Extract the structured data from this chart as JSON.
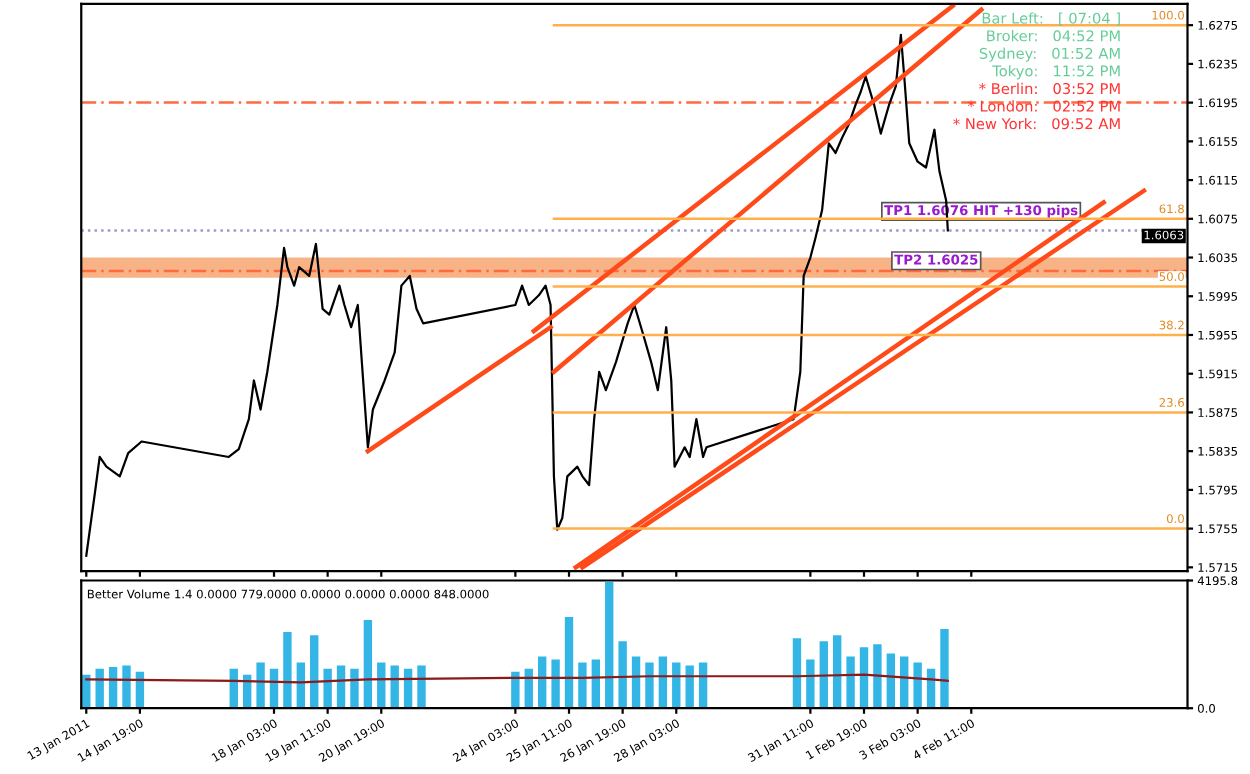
{
  "chart_data": [
    {
      "type": "line",
      "xlim": [
        "2011-01-13T08:00",
        "2011-02-09T20:00"
      ],
      "ylim": [
        1.5711,
        1.6297
      ],
      "tick_labels": "y",
      "xticks": [
        {
          "value": "2011-01-13T11:00",
          "label": null
        },
        {
          "value": "2011-01-14T19:00",
          "label": null
        },
        {
          "value": "2011-01-18T03:00",
          "label": null
        },
        {
          "value": "2011-01-19T11:00",
          "label": null
        },
        {
          "value": "2011-01-20T19:00",
          "label": null
        },
        {
          "value": "2011-01-24T03:00",
          "label": null
        },
        {
          "value": "2011-01-25T11:00",
          "label": null
        },
        {
          "value": "2011-01-26T19:00",
          "label": null
        },
        {
          "value": "2011-01-28T03:00",
          "label": null
        },
        {
          "value": "2011-01-31T11:00",
          "label": null
        },
        {
          "value": "2011-02-01T19:00",
          "label": null
        },
        {
          "value": "2011-02-03T03:00",
          "label": null
        },
        {
          "value": "2011-02-04T11:00",
          "label": null
        }
      ],
      "yticks": [
        1.5715,
        1.5755,
        1.5795,
        1.5835,
        1.5875,
        1.5915,
        1.5955,
        1.5995,
        1.6035,
        1.6075,
        1.6115,
        1.6155,
        1.6195,
        1.6235,
        1.6275
      ],
      "grid": false,
      "legend": false,
      "series": [
        {
          "color": "#000000",
          "x": [
            "2011-01-13T11:00",
            "2011-01-13T16:00",
            "2011-01-13T19:00",
            "2011-01-13T23:00",
            "2011-01-14T07:00",
            "2011-01-14T12:00",
            "2011-01-14T20:00",
            "2011-01-17T00:00",
            "2011-01-17T06:00",
            "2011-01-17T12:00",
            "2011-01-17T15:00",
            "2011-01-17T19:00",
            "2011-01-17T23:00",
            "2011-01-18T05:00",
            "2011-01-18T09:00",
            "2011-01-18T11:00",
            "2011-01-18T15:00",
            "2011-01-18T18:00",
            "2011-01-19T00:00",
            "2011-01-19T04:00",
            "2011-01-19T08:00",
            "2011-01-19T12:00",
            "2011-01-19T18:00",
            "2011-01-19T21:00",
            "2011-01-20T01:00",
            "2011-01-20T05:00",
            "2011-01-20T11:00",
            "2011-01-20T14:00",
            "2011-01-20T21:00",
            "2011-01-21T03:00",
            "2011-01-21T07:00",
            "2011-01-21T12:00",
            "2011-01-21T16:00",
            "2011-01-21T20:00",
            "2011-01-24T03:00",
            "2011-01-24T07:00",
            "2011-01-24T11:00",
            "2011-01-24T17:00",
            "2011-01-24T21:00",
            "2011-01-25T00:00",
            "2011-01-25T02:00",
            "2011-01-25T04:00",
            "2011-01-25T07:00",
            "2011-01-25T10:00",
            "2011-01-25T16:00",
            "2011-01-25T19:00",
            "2011-01-25T23:00",
            "2011-01-26T02:00",
            "2011-01-26T05:00",
            "2011-01-26T09:00",
            "2011-01-26T15:00",
            "2011-01-26T22:00",
            "2011-01-27T02:00",
            "2011-01-27T07:00",
            "2011-01-27T12:00",
            "2011-01-27T16:00",
            "2011-01-27T21:00",
            "2011-01-28T00:00",
            "2011-01-28T02:00",
            "2011-01-28T08:00",
            "2011-01-28T11:00",
            "2011-01-28T15:00",
            "2011-01-28T19:00",
            "2011-01-28T21:00",
            "2011-01-31T01:00",
            "2011-01-31T05:00",
            "2011-01-31T07:00",
            "2011-01-31T11:00",
            "2011-01-31T14:00",
            "2011-01-31T18:00",
            "2011-01-31T22:00",
            "2011-02-01T02:00",
            "2011-02-01T06:00",
            "2011-02-01T10:00",
            "2011-02-01T14:00",
            "2011-02-01T17:00",
            "2011-02-01T20:00",
            "2011-02-02T01:00",
            "2011-02-02T05:00",
            "2011-02-02T10:00",
            "2011-02-02T14:00",
            "2011-02-02T17:00",
            "2011-02-02T19:00",
            "2011-02-02T22:00",
            "2011-02-03T03:00",
            "2011-02-03T08:00",
            "2011-02-03T13:00",
            "2011-02-03T16:00",
            "2011-02-03T20:00",
            "2011-02-03T21:00"
          ],
          "values": [
            1.5727,
            1.579,
            1.5829,
            1.5819,
            1.5809,
            1.5833,
            1.5845,
            1.5829,
            1.5837,
            1.5868,
            1.5908,
            1.5878,
            1.5917,
            1.5986,
            1.6045,
            1.6025,
            1.6006,
            1.6025,
            1.6016,
            1.6049,
            1.5982,
            1.5976,
            1.6006,
            1.5986,
            1.5963,
            1.5986,
            1.5839,
            1.5878,
            1.5908,
            1.5937,
            1.6006,
            1.6016,
            1.5982,
            1.5967,
            1.5986,
            1.6006,
            1.5986,
            1.5996,
            1.6006,
            1.5986,
            1.5809,
            1.5754,
            1.5766,
            1.5809,
            1.5819,
            1.5809,
            1.58,
            1.5868,
            1.5917,
            1.5898,
            1.5927,
            1.5967,
            1.5986,
            1.5957,
            1.5927,
            1.5898,
            1.5963,
            1.5908,
            1.5819,
            1.5839,
            1.5829,
            1.5868,
            1.5829,
            1.5839,
            1.5868,
            1.5917,
            1.6016,
            1.6035,
            1.6055,
            1.6084,
            1.6153,
            1.6143,
            1.6159,
            1.6173,
            1.6193,
            1.6206,
            1.6222,
            1.6193,
            1.6163,
            1.6193,
            1.6212,
            1.6265,
            1.6222,
            1.6153,
            1.6134,
            1.6128,
            1.6167,
            1.6124,
            1.6094,
            1.6063
          ]
        },
        {
          "color": "#ff4a1a",
          "x": [
            "2011-01-20T11:00",
            "2011-01-25T00:00"
          ],
          "values": [
            1.5835,
            1.5963
          ]
        },
        {
          "color": "#ff4a1a",
          "x": [
            "2011-01-24T14:00",
            "2011-02-04T00:00"
          ],
          "values": [
            1.5959,
            1.6295
          ]
        },
        {
          "color": "#ff4a1a",
          "x": [
            "2011-01-25T02:00",
            "2011-02-04T17:00"
          ],
          "values": [
            1.5917,
            1.6291
          ]
        },
        {
          "color": "#ff4a1a",
          "x": [
            "2011-01-25T15:00",
            "2011-02-07T18:00"
          ],
          "values": [
            1.5715,
            1.6092
          ]
        },
        {
          "color": "#ff4a1a",
          "x": [
            "2011-01-25T19:00",
            "2011-02-08T18:00"
          ],
          "values": [
            1.5715,
            1.6104
          ]
        },
        {
          "name": "100.0",
          "color": "#ffb04a",
          "x": [
            "2011-01-25T02:00",
            "2011-02-09T20:00"
          ],
          "values": [
            1.6275,
            1.6275
          ]
        },
        {
          "name": "61.8",
          "color": "#ffb04a",
          "x": [
            "2011-01-25T02:00",
            "2011-02-09T20:00"
          ],
          "values": [
            1.6075,
            1.6075
          ]
        },
        {
          "name": "50.0",
          "color": "#ffb04a",
          "x": [
            "2011-01-25T02:00",
            "2011-02-09T20:00"
          ],
          "values": [
            1.6005,
            1.6005
          ]
        },
        {
          "name": "38.2",
          "color": "#ffb04a",
          "x": [
            "2011-01-25T02:00",
            "2011-02-09T20:00"
          ],
          "values": [
            1.5955,
            1.5955
          ]
        },
        {
          "name": "23.6",
          "color": "#ffb04a",
          "x": [
            "2011-01-25T02:00",
            "2011-02-09T20:00"
          ],
          "values": [
            1.5875,
            1.5875
          ]
        },
        {
          "name": "0.0",
          "color": "#ffb04a",
          "x": [
            "2011-01-25T02:00",
            "2011-02-09T20:00"
          ],
          "values": [
            1.5755,
            1.5755
          ]
        }
      ],
      "ref_lines": [
        {
          "axis": "y",
          "value": 1.6195,
          "color": "#ff6a40",
          "line_style": "dashed"
        },
        {
          "axis": "y",
          "value": 1.6021,
          "color": "#ff6a40",
          "line_style": "dashed"
        },
        {
          "axis": "y",
          "value": 1.6063,
          "label": "1.6063",
          "color": "#9a9acc",
          "line_style": "dotted"
        }
      ],
      "bands": [
        {
          "axis": "y",
          "from": 1.6014,
          "to": 1.6035,
          "color": "#f5a068"
        }
      ],
      "annotations": [
        "Bar Left:   [ 07:04 ]",
        "Broker:   04:52 PM",
        "Sydney:   01:52 AM",
        "Tokyo:   11:52 PM",
        "* Berlin:   03:52 PM",
        "* London:   02:52 PM",
        "* New York:   09:52 AM",
        {
          "text": "TP1 1.6076 HIT +130 pips",
          "x": "2011-02-02T07:00",
          "y": 1.6076
        },
        {
          "text": "TP2 1.6025",
          "x": "2011-02-02T13:00",
          "y": 1.6025
        }
      ]
    },
    {
      "type": "bar",
      "xlim": [
        "2011-01-13T08:00",
        "2011-02-09T20:00"
      ],
      "ylim": [
        0,
        4195.8
      ],
      "yticks": [
        {
          "value": 0,
          "label": "0.0"
        },
        4195.8
      ],
      "grid": false,
      "legend": false,
      "xticks": [
        {
          "value": "2011-01-13T11:00",
          "label": "13 Jan 2011"
        },
        {
          "value": "2011-01-14T19:00",
          "label": "14 Jan 19:00"
        },
        {
          "value": "2011-01-18T03:00",
          "label": "18 Jan 03:00"
        },
        {
          "value": "2011-01-19T11:00",
          "label": "19 Jan 11:00"
        },
        {
          "value": "2011-01-20T19:00",
          "label": "20 Jan 19:00"
        },
        {
          "value": "2011-01-24T03:00",
          "label": "24 Jan 03:00"
        },
        {
          "value": "2011-01-25T11:00",
          "label": "25 Jan 11:00"
        },
        {
          "value": "2011-01-26T19:00",
          "label": "26 Jan 19:00"
        },
        {
          "value": "2011-01-28T03:00",
          "label": "28 Jan 03:00"
        },
        {
          "value": "2011-01-31T11:00",
          "label": "31 Jan 11:00"
        },
        {
          "value": "2011-02-01T19:00",
          "label": "1 Feb 19:00"
        },
        {
          "value": "2011-02-03T03:00",
          "label": "3 Feb 03:00"
        },
        {
          "value": "2011-02-04T11:00",
          "label": "4 Feb 11:00"
        }
      ],
      "series": [
        {
          "color": "#33b5e5",
          "x": [
            "2011-01-13T11:00",
            "2011-01-13T19:00",
            "2011-01-14T03:00",
            "2011-01-14T11:00",
            "2011-01-14T19:00",
            "2011-01-17T03:00",
            "2011-01-17T11:00",
            "2011-01-17T19:00",
            "2011-01-18T03:00",
            "2011-01-18T11:00",
            "2011-01-18T19:00",
            "2011-01-19T03:00",
            "2011-01-19T11:00",
            "2011-01-19T19:00",
            "2011-01-20T03:00",
            "2011-01-20T11:00",
            "2011-01-20T19:00",
            "2011-01-21T03:00",
            "2011-01-21T11:00",
            "2011-01-21T19:00",
            "2011-01-24T03:00",
            "2011-01-24T11:00",
            "2011-01-24T19:00",
            "2011-01-25T03:00",
            "2011-01-25T11:00",
            "2011-01-25T19:00",
            "2011-01-26T03:00",
            "2011-01-26T11:00",
            "2011-01-26T19:00",
            "2011-01-27T03:00",
            "2011-01-27T11:00",
            "2011-01-27T19:00",
            "2011-01-28T03:00",
            "2011-01-28T11:00",
            "2011-01-28T19:00",
            "2011-01-31T03:00",
            "2011-01-31T11:00",
            "2011-01-31T19:00",
            "2011-02-01T03:00",
            "2011-02-01T11:00",
            "2011-02-01T19:00",
            "2011-02-02T03:00",
            "2011-02-02T11:00",
            "2011-02-02T19:00",
            "2011-02-03T03:00",
            "2011-02-03T11:00",
            "2011-02-03T19:00"
          ],
          "values": [
            1100,
            1300,
            1350,
            1400,
            1200,
            1300,
            1100,
            1500,
            1300,
            2500,
            1500,
            2400,
            1300,
            1400,
            1300,
            2900,
            1500,
            1400,
            1300,
            1400,
            1200,
            1300,
            1700,
            1600,
            3000,
            1500,
            1600,
            4150,
            2200,
            1700,
            1500,
            1700,
            1500,
            1400,
            1500,
            2300,
            1600,
            2200,
            2400,
            1700,
            2000,
            2100,
            1800,
            1700,
            1500,
            1300,
            2600
          ]
        },
        {
          "type": "line",
          "color": "#8b1a1a",
          "x": [
            "2011-01-13T11:00",
            "2011-01-17T03:00",
            "2011-01-18T19:00",
            "2011-01-20T11:00",
            "2011-01-24T03:00",
            "2011-01-25T19:00",
            "2011-01-27T11:00",
            "2011-01-31T03:00",
            "2011-02-01T19:00",
            "2011-02-03T11:00",
            "2011-02-03T21:00"
          ],
          "values": [
            950,
            900,
            850,
            950,
            1000,
            1000,
            1050,
            1050,
            1100,
            950,
            900
          ]
        }
      ],
      "annotations": [
        "Better Volume 1.4 0.0000 779.0000 0.0000 0.0000 0.0000 848.0000"
      ]
    }
  ]
}
